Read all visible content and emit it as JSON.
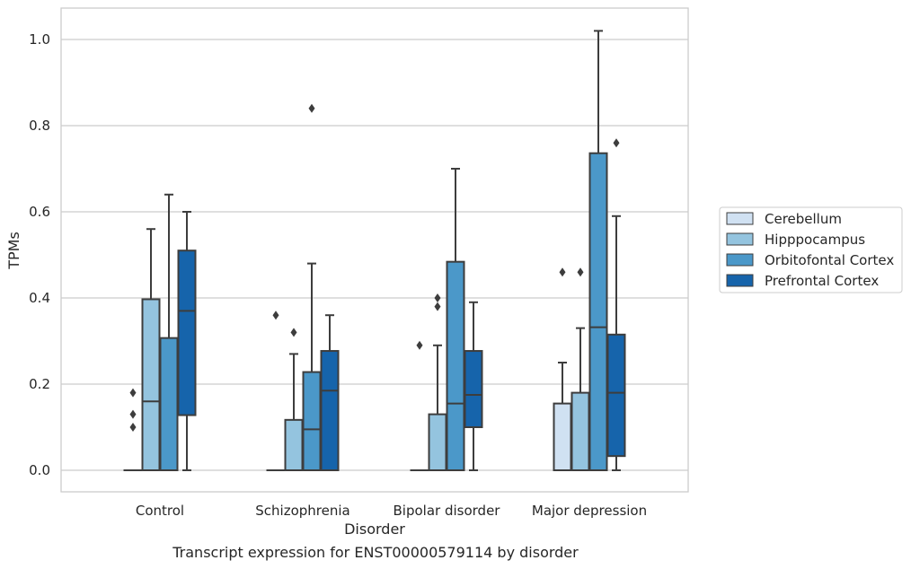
{
  "caption": "Transcript expression for ENST00000579114 by disorder",
  "chart_data": {
    "type": "box",
    "title": "",
    "xlabel": "Disorder",
    "ylabel": "TPMs",
    "ylim": [
      -0.05,
      1.07
    ],
    "yticks": [
      0.0,
      0.2,
      0.4,
      0.6,
      0.8,
      1.0
    ],
    "ytick_labels": [
      "0.0",
      "0.2",
      "0.4",
      "0.6",
      "0.8",
      "1.0"
    ],
    "grid": "horizontal",
    "legend_position": "right",
    "categories": [
      "Control",
      "Schizophrenia",
      "Bipolar disorder",
      "Major depression"
    ],
    "series": [
      {
        "name": "Cerebellum",
        "color": "#d0e1f2",
        "boxes": [
          {
            "whislo": 0.0,
            "q1": 0.0,
            "med": 0.0,
            "q3": 0.0,
            "whishi": 0.0,
            "fliers": [
              0.1,
              0.13,
              0.18
            ]
          },
          {
            "whislo": 0.0,
            "q1": 0.0,
            "med": 0.0,
            "q3": 0.0,
            "whishi": 0.0,
            "fliers": [
              0.36
            ]
          },
          {
            "whislo": 0.0,
            "q1": 0.0,
            "med": 0.0,
            "q3": 0.0,
            "whishi": 0.0,
            "fliers": [
              0.29
            ]
          },
          {
            "whislo": 0.0,
            "q1": 0.0,
            "med": 0.0,
            "q3": 0.155,
            "whishi": 0.25,
            "fliers": [
              0.46
            ]
          }
        ]
      },
      {
        "name": "Hipppocampus",
        "color": "#94c4df",
        "boxes": [
          {
            "whislo": 0.0,
            "q1": 0.0,
            "med": 0.16,
            "q3": 0.397,
            "whishi": 0.56,
            "fliers": []
          },
          {
            "whislo": 0.0,
            "q1": 0.0,
            "med": 0.0,
            "q3": 0.117,
            "whishi": 0.27,
            "fliers": [
              0.32
            ]
          },
          {
            "whislo": 0.0,
            "q1": 0.0,
            "med": 0.0,
            "q3": 0.13,
            "whishi": 0.29,
            "fliers": [
              0.38,
              0.4
            ]
          },
          {
            "whislo": 0.0,
            "q1": 0.0,
            "med": 0.0,
            "q3": 0.18,
            "whishi": 0.33,
            "fliers": [
              0.46
            ]
          }
        ]
      },
      {
        "name": "Orbitofontal Cortex",
        "color": "#4b98c9",
        "boxes": [
          {
            "whislo": 0.0,
            "q1": 0.0,
            "med": 0.0,
            "q3": 0.307,
            "whishi": 0.64,
            "fliers": []
          },
          {
            "whislo": 0.0,
            "q1": 0.0,
            "med": 0.095,
            "q3": 0.228,
            "whishi": 0.48,
            "fliers": [
              0.84
            ]
          },
          {
            "whislo": 0.0,
            "q1": 0.0,
            "med": 0.155,
            "q3": 0.484,
            "whishi": 0.7,
            "fliers": []
          },
          {
            "whislo": 0.0,
            "q1": 0.0,
            "med": 0.332,
            "q3": 0.736,
            "whishi": 1.02,
            "fliers": []
          }
        ]
      },
      {
        "name": "Prefrontal Cortex",
        "color": "#1664ab",
        "boxes": [
          {
            "whislo": 0.0,
            "q1": 0.128,
            "med": 0.37,
            "q3": 0.51,
            "whishi": 0.6,
            "fliers": []
          },
          {
            "whislo": 0.0,
            "q1": 0.0,
            "med": 0.185,
            "q3": 0.277,
            "whishi": 0.36,
            "fliers": []
          },
          {
            "whislo": 0.0,
            "q1": 0.1,
            "med": 0.175,
            "q3": 0.277,
            "whishi": 0.39,
            "fliers": []
          },
          {
            "whislo": 0.0,
            "q1": 0.033,
            "med": 0.18,
            "q3": 0.315,
            "whishi": 0.59,
            "fliers": [
              0.76
            ]
          }
        ]
      }
    ]
  }
}
